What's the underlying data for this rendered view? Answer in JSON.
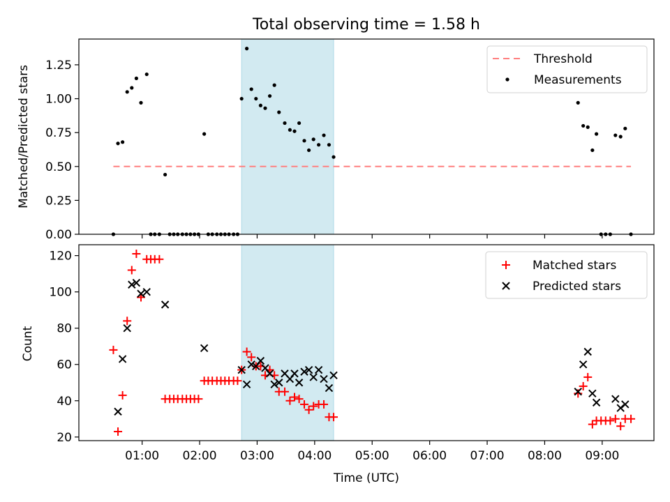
{
  "chart_data": [
    {
      "type": "scatter",
      "title": "Total observing time = 1.58 h",
      "ylabel": "Matched/Predicted stars",
      "xlabel": "",
      "xlim": [
        -0.1,
        9.9
      ],
      "ylim": [
        0,
        1.44
      ],
      "yticks": [
        0,
        0.25,
        0.5,
        0.75,
        1.0,
        1.25
      ],
      "ytick_labels": [
        "0.00",
        "0.25",
        "0.50",
        "0.75",
        "1.00",
        "1.25"
      ],
      "highlight_span": [
        2.73,
        4.33
      ],
      "threshold": {
        "name": "Threshold",
        "value": 0.5,
        "x": [
          0.5,
          9.5
        ],
        "color": "#ff7f7f"
      },
      "series": [
        {
          "name": "Measurements",
          "color": "#000000",
          "marker": "dot",
          "x": [
            0.5,
            0.58,
            0.66,
            0.74,
            0.82,
            0.9,
            0.98,
            1.08,
            1.15,
            1.22,
            1.3,
            1.4,
            1.48,
            1.55,
            1.62,
            1.7,
            1.77,
            1.84,
            1.91,
            1.98,
            2.08,
            2.15,
            2.22,
            2.3,
            2.37,
            2.44,
            2.51,
            2.59,
            2.66,
            2.73,
            2.82,
            2.9,
            2.98,
            3.06,
            3.14,
            3.22,
            3.3,
            3.38,
            3.48,
            3.57,
            3.65,
            3.73,
            3.82,
            3.9,
            3.98,
            4.07,
            4.16,
            4.25,
            4.33,
            8.58,
            8.67,
            8.75,
            8.83,
            8.9,
            8.98,
            9.06,
            9.14,
            9.23,
            9.32,
            9.4,
            9.5
          ],
          "y": [
            0.0,
            0.67,
            0.68,
            1.05,
            1.08,
            1.15,
            0.97,
            1.18,
            0.0,
            0.0,
            0.0,
            0.44,
            0.0,
            0.0,
            0.0,
            0.0,
            0.0,
            0.0,
            0.0,
            0.0,
            0.74,
            0.0,
            0.0,
            0.0,
            0.0,
            0.0,
            0.0,
            0.0,
            0.0,
            1.0,
            1.37,
            1.07,
            1.0,
            0.95,
            0.93,
            1.02,
            1.1,
            0.9,
            0.82,
            0.77,
            0.76,
            0.82,
            0.69,
            0.62,
            0.7,
            0.66,
            0.73,
            0.66,
            0.57,
            0.97,
            0.8,
            0.79,
            0.62,
            0.74,
            0.0,
            0.0,
            0.0,
            0.73,
            0.72,
            0.78,
            0.0
          ]
        }
      ],
      "legend": {
        "placement": "top-right",
        "entries": [
          "Threshold",
          "Measurements"
        ]
      },
      "grid": false
    },
    {
      "type": "scatter",
      "title": "",
      "xlabel": "Time (UTC)",
      "ylabel": "Count",
      "xlim": [
        -0.1,
        9.9
      ],
      "ylim": [
        18,
        126
      ],
      "xticks": [
        1,
        2,
        3,
        4,
        5,
        6,
        7,
        8,
        9
      ],
      "xtick_labels": [
        "01:00",
        "02:00",
        "03:00",
        "04:00",
        "05:00",
        "06:00",
        "07:00",
        "08:00",
        "09:00"
      ],
      "yticks": [
        20,
        40,
        60,
        80,
        100,
        120
      ],
      "ytick_labels": [
        "20",
        "40",
        "60",
        "80",
        "100",
        "120"
      ],
      "highlight_span": [
        2.73,
        4.33
      ],
      "series": [
        {
          "name": "Matched stars",
          "color": "#ff0000",
          "marker": "plus",
          "x": [
            0.5,
            0.58,
            0.66,
            0.74,
            0.82,
            0.9,
            0.98,
            1.08,
            1.15,
            1.22,
            1.3,
            1.4,
            1.48,
            1.55,
            1.62,
            1.7,
            1.77,
            1.84,
            1.91,
            1.98,
            2.08,
            2.15,
            2.22,
            2.3,
            2.37,
            2.44,
            2.51,
            2.59,
            2.66,
            2.73,
            2.82,
            2.9,
            2.98,
            3.06,
            3.14,
            3.22,
            3.3,
            3.38,
            3.48,
            3.57,
            3.65,
            3.73,
            3.82,
            3.9,
            3.98,
            4.07,
            4.16,
            4.25,
            4.33,
            8.58,
            8.67,
            8.75,
            8.83,
            8.9,
            8.98,
            9.06,
            9.14,
            9.23,
            9.32,
            9.4,
            9.5
          ],
          "y": [
            68,
            23,
            43,
            84,
            112,
            121,
            97,
            118,
            118,
            118,
            118,
            41,
            41,
            41,
            41,
            41,
            41,
            41,
            41,
            41,
            51,
            51,
            51,
            51,
            51,
            51,
            51,
            51,
            51,
            57,
            67,
            64,
            59,
            59,
            54,
            57,
            54,
            45,
            45,
            40,
            42,
            41,
            38,
            35,
            37,
            38,
            38,
            31,
            31,
            44,
            48,
            53,
            27,
            29,
            29,
            29,
            29,
            30,
            26,
            30,
            30
          ]
        },
        {
          "name": "Predicted stars",
          "color": "#000000",
          "marker": "cross",
          "x": [
            0.58,
            0.66,
            0.74,
            0.82,
            0.9,
            0.98,
            1.08,
            1.4,
            2.08,
            2.73,
            2.82,
            2.9,
            2.98,
            3.06,
            3.14,
            3.22,
            3.3,
            3.38,
            3.48,
            3.57,
            3.65,
            3.73,
            3.82,
            3.9,
            3.98,
            4.07,
            4.16,
            4.25,
            4.33,
            8.58,
            8.67,
            8.75,
            8.83,
            8.9,
            9.23,
            9.32,
            9.4
          ],
          "y": [
            34,
            63,
            80,
            104,
            105,
            99,
            100,
            93,
            69,
            57,
            49,
            60,
            59,
            62,
            58,
            55,
            49,
            50,
            55,
            52,
            55,
            50,
            56,
            57,
            53,
            57,
            52,
            47,
            54,
            45,
            60,
            67,
            44,
            39,
            41,
            36,
            38
          ]
        }
      ],
      "legend": {
        "placement": "top-right",
        "entries": [
          "Matched stars",
          "Predicted stars"
        ]
      },
      "grid": false
    }
  ]
}
